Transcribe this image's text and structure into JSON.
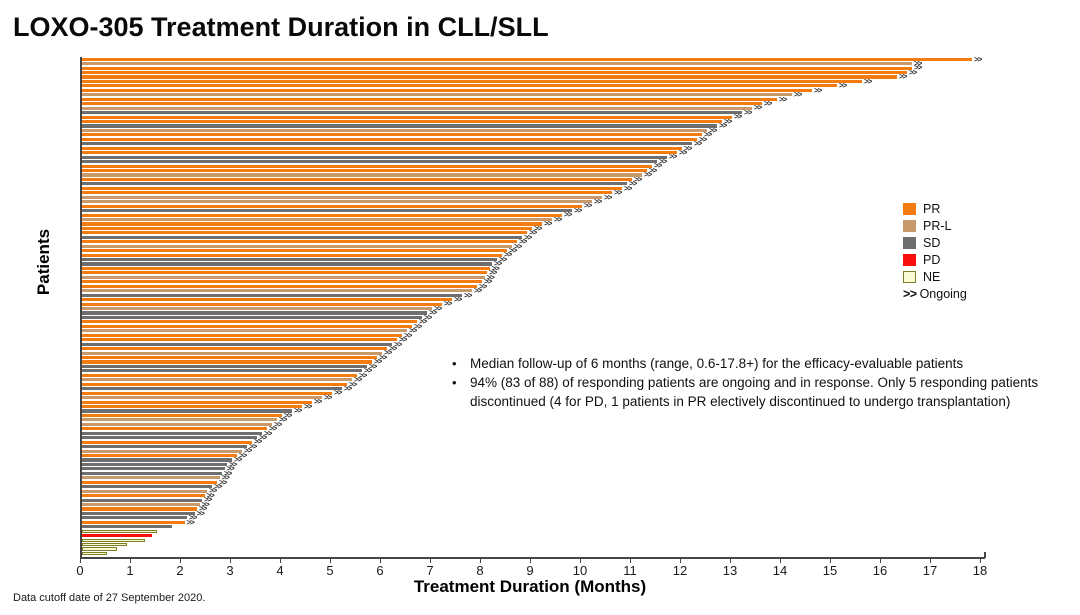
{
  "title": "LOXO-305 Treatment Duration in CLL/SLL",
  "footer": "Data cutoff date of 27 September 2020.",
  "bullets": {
    "dot": "•",
    "items": [
      "Median follow-up of 6 months (range, 0.6-17.8+) for the efficacy-evaluable patients",
      "94% (83 of 88) of responding patients are ongoing and in response. Only 5 responding patients discontinued (4 for PD, 1 patients in PR electively discontinued to undergo transplantation)"
    ]
  },
  "chart_data": {
    "type": "bar",
    "orientation": "horizontal",
    "title": "LOXO-305 Treatment Duration in CLL/SLL",
    "xlabel": "Treatment Duration (Months)",
    "ylabel": "Patients",
    "xlim": [
      0,
      18
    ],
    "x_ticks": [
      0,
      1,
      2,
      3,
      4,
      5,
      6,
      7,
      8,
      9,
      10,
      11,
      12,
      13,
      14,
      15,
      16,
      17,
      18
    ],
    "grid": false,
    "legend_position": "right",
    "ongoing_marker": ">>",
    "ongoing_label": "Ongoing",
    "statuses": {
      "PR": "#F47B0F",
      "PR-L": "#C8996B",
      "SD": "#6E6E6E",
      "PD": "#FA0F0F",
      "NE": "#FAFAD2"
    },
    "ne_border": "#7E7E25",
    "axis_color": "#454545",
    "legend": [
      {
        "label": "PR",
        "color": "#F47B0F",
        "border": "#F47B0F"
      },
      {
        "label": "PR-L",
        "color": "#C8996B",
        "border": "#C8996B"
      },
      {
        "label": "SD",
        "color": "#6E6E6E",
        "border": "#6E6E6E"
      },
      {
        "label": "PD",
        "color": "#FA0F0F",
        "border": "#FA0F0F"
      },
      {
        "label": "NE",
        "color": "#FAFAD2",
        "border": "#7E7E25"
      }
    ],
    "patients": [
      [
        "PR",
        17.8,
        1
      ],
      [
        "PR-L",
        16.6,
        1
      ],
      [
        "PR",
        16.6,
        1
      ],
      [
        "PR",
        16.5,
        1
      ],
      [
        "PR",
        16.3,
        1
      ],
      [
        "PR",
        15.6,
        1
      ],
      [
        "PR",
        15.1,
        1
      ],
      [
        "PR",
        14.6,
        1
      ],
      [
        "PR-L",
        14.2,
        1
      ],
      [
        "PR",
        13.9,
        1
      ],
      [
        "PR",
        13.6,
        1
      ],
      [
        "PR-L",
        13.4,
        1
      ],
      [
        "SD",
        13.2,
        1
      ],
      [
        "PR",
        13.0,
        1
      ],
      [
        "PR",
        12.8,
        1
      ],
      [
        "SD",
        12.7,
        1
      ],
      [
        "PR-L",
        12.5,
        1
      ],
      [
        "PR",
        12.4,
        1
      ],
      [
        "PR",
        12.3,
        1
      ],
      [
        "SD",
        12.2,
        1
      ],
      [
        "PR",
        12.0,
        1
      ],
      [
        "PR",
        11.9,
        1
      ],
      [
        "SD",
        11.7,
        1
      ],
      [
        "SD",
        11.5,
        1
      ],
      [
        "PR",
        11.4,
        1
      ],
      [
        "PR",
        11.3,
        1
      ],
      [
        "PR-L",
        11.2,
        1
      ],
      [
        "PR",
        11.0,
        1
      ],
      [
        "SD",
        10.9,
        1
      ],
      [
        "PR",
        10.8,
        1
      ],
      [
        "PR",
        10.6,
        1
      ],
      [
        "PR-L",
        10.4,
        1
      ],
      [
        "PR-L",
        10.2,
        1
      ],
      [
        "PR",
        10.0,
        1
      ],
      [
        "SD",
        9.8,
        1
      ],
      [
        "PR",
        9.6,
        1
      ],
      [
        "PR-L",
        9.4,
        1
      ],
      [
        "PR",
        9.2,
        1
      ],
      [
        "PR",
        9.0,
        1
      ],
      [
        "PR",
        8.9,
        1
      ],
      [
        "SD",
        8.8,
        1
      ],
      [
        "PR",
        8.7,
        1
      ],
      [
        "PR-L",
        8.6,
        1
      ],
      [
        "PR",
        8.5,
        1
      ],
      [
        "PR",
        8.4,
        1
      ],
      [
        "SD",
        8.3,
        1
      ],
      [
        "SD",
        8.2,
        1
      ],
      [
        "PR",
        8.15,
        1
      ],
      [
        "PR",
        8.1,
        1
      ],
      [
        "PR-L",
        8.05,
        1
      ],
      [
        "PR",
        8.0,
        1
      ],
      [
        "PR",
        7.9,
        1
      ],
      [
        "PR-L",
        7.8,
        1
      ],
      [
        "SD",
        7.6,
        1
      ],
      [
        "PR",
        7.4,
        1
      ],
      [
        "PR",
        7.2,
        1
      ],
      [
        "PR-L",
        7.0,
        1
      ],
      [
        "SD",
        6.9,
        1
      ],
      [
        "SD",
        6.8,
        1
      ],
      [
        "PR",
        6.7,
        1
      ],
      [
        "PR",
        6.6,
        1
      ],
      [
        "PR-L",
        6.5,
        1
      ],
      [
        "PR",
        6.4,
        1
      ],
      [
        "PR",
        6.3,
        1
      ],
      [
        "SD",
        6.2,
        1
      ],
      [
        "PR",
        6.1,
        1
      ],
      [
        "PR-L",
        6.0,
        1
      ],
      [
        "PR",
        5.9,
        1
      ],
      [
        "PR",
        5.8,
        1
      ],
      [
        "SD",
        5.7,
        1
      ],
      [
        "SD",
        5.6,
        1
      ],
      [
        "PR",
        5.5,
        1
      ],
      [
        "PR-L",
        5.4,
        1
      ],
      [
        "PR",
        5.3,
        1
      ],
      [
        "SD",
        5.2,
        1
      ],
      [
        "PR",
        5.0,
        1
      ],
      [
        "PR-L",
        4.8,
        1
      ],
      [
        "PR",
        4.6,
        1
      ],
      [
        "PR",
        4.4,
        1
      ],
      [
        "SD",
        4.2,
        1
      ],
      [
        "PR",
        4.0,
        1
      ],
      [
        "PR-L",
        3.9,
        1
      ],
      [
        "PR-L",
        3.8,
        1
      ],
      [
        "PR",
        3.7,
        1
      ],
      [
        "SD",
        3.6,
        1
      ],
      [
        "SD",
        3.5,
        1
      ],
      [
        "PR",
        3.4,
        1
      ],
      [
        "SD",
        3.3,
        1
      ],
      [
        "PR-L",
        3.2,
        1
      ],
      [
        "PR",
        3.1,
        1
      ],
      [
        "SD",
        3.0,
        1
      ],
      [
        "SD",
        2.9,
        1
      ],
      [
        "SD",
        2.85,
        1
      ],
      [
        "SD",
        2.8,
        1
      ],
      [
        "PR-L",
        2.75,
        1
      ],
      [
        "PR",
        2.7,
        1
      ],
      [
        "SD",
        2.6,
        1
      ],
      [
        "PR-L",
        2.5,
        1
      ],
      [
        "PR",
        2.45,
        1
      ],
      [
        "SD",
        2.4,
        1
      ],
      [
        "PR-L",
        2.35,
        1
      ],
      [
        "PR",
        2.3,
        1
      ],
      [
        "SD",
        2.25,
        1
      ],
      [
        "SD",
        2.1,
        1
      ],
      [
        "PR",
        2.05,
        1
      ],
      [
        "SD",
        1.8,
        0
      ],
      [
        "NE",
        1.5,
        0
      ],
      [
        "PD",
        1.4,
        0
      ],
      [
        "NE",
        1.25,
        0
      ],
      [
        "NE",
        0.9,
        0
      ],
      [
        "NE",
        0.7,
        0
      ],
      [
        "NE",
        0.5,
        0
      ]
    ]
  }
}
